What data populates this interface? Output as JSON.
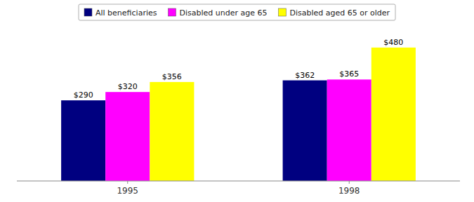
{
  "chart_data": {
    "type": "bar",
    "categories": [
      "1995",
      "1998"
    ],
    "series": [
      {
        "name": "All beneficiaries",
        "color": "#000080",
        "values": [
          290,
          362
        ],
        "value_labels": [
          "$290",
          "$362"
        ]
      },
      {
        "name": "Disabled under age 65",
        "color": "#FF00FF",
        "values": [
          320,
          365
        ],
        "value_labels": [
          "$320",
          "$365"
        ]
      },
      {
        "name": "Disabled aged 65 or older",
        "color": "#FFFF00",
        "values": [
          356,
          480
        ],
        "value_labels": [
          "$356",
          "$480"
        ]
      }
    ],
    "ylim": [
      0,
      540
    ],
    "data_labels": true,
    "tick_labels": "x",
    "legend": "top",
    "grid": false
  }
}
